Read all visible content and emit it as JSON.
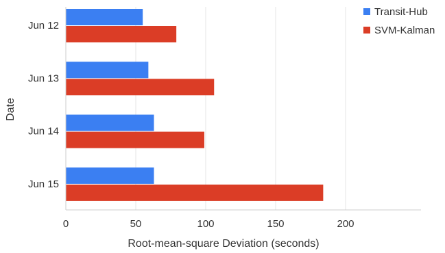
{
  "chart_data": {
    "type": "bar",
    "orientation": "horizontal",
    "categories": [
      "Jun 12",
      "Jun 13",
      "Jun 14",
      "Jun 15"
    ],
    "series": [
      {
        "name": "Transit-Hub",
        "color": "#3b7ff2",
        "values": [
          55,
          59,
          63,
          63
        ]
      },
      {
        "name": "SVM-Kalman",
        "color": "#db3d26",
        "values": [
          79,
          106,
          99,
          184
        ]
      }
    ],
    "xlabel": "Root-mean-square Deviation (seconds)",
    "ylabel": "Date",
    "xlim": [
      0,
      256
    ],
    "xticks": [
      0,
      50,
      100,
      150,
      200
    ],
    "grid": "vertical",
    "legend_position": "top-right"
  }
}
